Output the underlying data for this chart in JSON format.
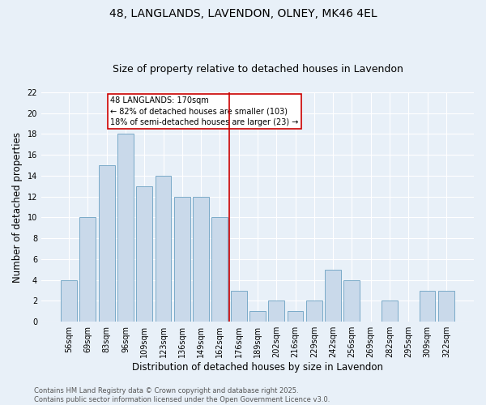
{
  "title": "48, LANGLANDS, LAVENDON, OLNEY, MK46 4EL",
  "subtitle": "Size of property relative to detached houses in Lavendon",
  "xlabel": "Distribution of detached houses by size in Lavendon",
  "ylabel": "Number of detached properties",
  "categories": [
    "56sqm",
    "69sqm",
    "83sqm",
    "96sqm",
    "109sqm",
    "123sqm",
    "136sqm",
    "149sqm",
    "162sqm",
    "176sqm",
    "189sqm",
    "202sqm",
    "216sqm",
    "229sqm",
    "242sqm",
    "256sqm",
    "269sqm",
    "282sqm",
    "295sqm",
    "309sqm",
    "322sqm"
  ],
  "values": [
    4,
    10,
    15,
    18,
    13,
    14,
    12,
    12,
    10,
    3,
    1,
    2,
    1,
    2,
    5,
    4,
    0,
    2,
    0,
    3,
    3
  ],
  "bar_color": "#c9d9ea",
  "bar_edge_color": "#7aaac8",
  "vline_x": 8.5,
  "vline_color": "#cc0000",
  "annotation_text": "48 LANGLANDS: 170sqm\n← 82% of detached houses are smaller (103)\n18% of semi-detached houses are larger (23) →",
  "annotation_box_color": "white",
  "annotation_box_edge_color": "#cc0000",
  "ylim": [
    0,
    22
  ],
  "yticks": [
    0,
    2,
    4,
    6,
    8,
    10,
    12,
    14,
    16,
    18,
    20,
    22
  ],
  "background_color": "#e8f0f8",
  "grid_color": "white",
  "footer_text": "Contains HM Land Registry data © Crown copyright and database right 2025.\nContains public sector information licensed under the Open Government Licence v3.0.",
  "title_fontsize": 10,
  "subtitle_fontsize": 9,
  "xlabel_fontsize": 8.5,
  "ylabel_fontsize": 8.5,
  "tick_fontsize": 7,
  "footer_fontsize": 6,
  "annot_fontsize": 7
}
